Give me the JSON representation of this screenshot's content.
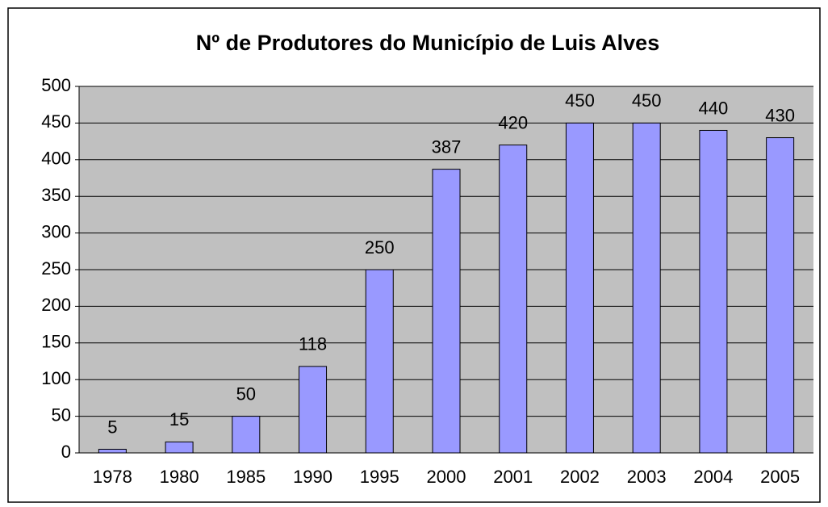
{
  "chart_data": {
    "type": "bar",
    "title": "Nº de Produtores do Município de Luis Alves",
    "categories": [
      "1978",
      "1980",
      "1985",
      "1990",
      "1995",
      "2000",
      "2001",
      "2002",
      "2003",
      "2004",
      "2005"
    ],
    "values": [
      5,
      15,
      50,
      118,
      250,
      387,
      420,
      450,
      450,
      440,
      430
    ],
    "color": "#9999ff",
    "ylim": [
      0,
      500
    ],
    "yticks": [
      0,
      50,
      100,
      150,
      200,
      250,
      300,
      350,
      400,
      450,
      500
    ],
    "grid": true
  }
}
